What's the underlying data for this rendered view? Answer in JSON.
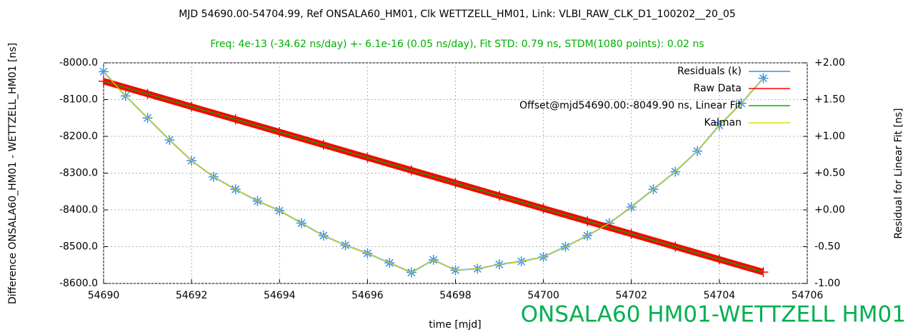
{
  "chart_data": {
    "type": "line",
    "title": "MJD 54690.00-54704.99, Ref ONSALA60_HM01, Clk WETTZELL_HM01, Link: VLBI_RAW_CLK_D1_100202__20_05",
    "subtitle": "Freq: 4e-13 (-34.62 ns/day) +- 6.1e-16 (0.05 ns/day), Fit STD: 0.79 ns, STDM(1080 points): 0.02 ns",
    "xlabel": "time [mjd]",
    "ylabel": "Difference ONSALA60_HM01  -  WETTZELL_HM01 [ns]",
    "y2label": "Residual for Linear Fit [ns]",
    "annotation": "ONSALA60 HM01-WETTZELL HM01",
    "xlim": [
      54690,
      54706
    ],
    "xticks": [
      54690,
      54692,
      54694,
      54696,
      54698,
      54700,
      54702,
      54704,
      54706
    ],
    "ylim": [
      -8600,
      -8000
    ],
    "yticks": [
      {
        "value": -8000,
        "label": "-8000.0"
      },
      {
        "value": -8100,
        "label": "-8100.0"
      },
      {
        "value": -8200,
        "label": "-8200.0"
      },
      {
        "value": -8300,
        "label": "-8300.0"
      },
      {
        "value": -8400,
        "label": "-8400.0"
      },
      {
        "value": -8500,
        "label": "-8500.0"
      },
      {
        "value": -8600,
        "label": "-8600.0"
      }
    ],
    "y2lim": [
      -1,
      2
    ],
    "y2ticks": [
      {
        "value": 2,
        "label": "+2.00"
      },
      {
        "value": 1.5,
        "label": "+1.50"
      },
      {
        "value": 1,
        "label": "+1.00"
      },
      {
        "value": 0.5,
        "label": "+0.50"
      },
      {
        "value": 0,
        "label": "+0.00"
      },
      {
        "value": -0.5,
        "label": "-0.50"
      },
      {
        "value": -1,
        "label": "-1.00"
      }
    ],
    "grid": true,
    "legend": "top right",
    "series": [
      {
        "name": "Residuals (k)",
        "color": "#3a8ee6",
        "axis": "y2",
        "marker": "star",
        "x": [
          54690,
          54690.5,
          54691,
          54691.5,
          54692,
          54692.5,
          54693,
          54693.5,
          54694,
          54694.5,
          54695,
          54695.5,
          54696,
          54696.5,
          54697,
          54697.5,
          54698,
          54698.5,
          54699,
          54699.5,
          54700,
          54700.5,
          54701,
          54701.5,
          54702,
          54702.5,
          54703,
          54703.5,
          54704,
          54704.5,
          54705
        ],
        "values": [
          1.88,
          1.55,
          1.25,
          0.95,
          0.67,
          0.45,
          0.28,
          0.12,
          -0.01,
          -0.18,
          -0.35,
          -0.48,
          -0.59,
          -0.72,
          -0.85,
          -0.68,
          -0.82,
          -0.8,
          -0.74,
          -0.7,
          -0.64,
          -0.5,
          -0.35,
          -0.18,
          0.04,
          0.28,
          0.52,
          0.8,
          1.15,
          1.45,
          1.79
        ]
      },
      {
        "name": "Raw Data",
        "color": "#ff0000",
        "marker": "plus",
        "x": [
          54690,
          54691,
          54692,
          54693,
          54694,
          54695,
          54696,
          54697,
          54698,
          54699,
          54700,
          54701,
          54702,
          54703,
          54704,
          54705
        ],
        "values": [
          -8049.9,
          -8084.52,
          -8119.14,
          -8153.76,
          -8188.38,
          -8223.0,
          -8257.62,
          -8292.24,
          -8326.86,
          -8361.48,
          -8396.1,
          -8430.72,
          -8465.34,
          -8499.96,
          -8534.58,
          -8569.2
        ]
      },
      {
        "name": "Offset@mjd54690.00:-8049.90 ns, Linear Fit",
        "color": "#00b000",
        "x": [
          54690,
          54705
        ],
        "values": [
          -8049.9,
          -8569.2
        ]
      },
      {
        "name": "Kalman",
        "color": "#e0e000",
        "axis": "y2",
        "x": [
          54690,
          54690.5,
          54691,
          54691.5,
          54692,
          54692.5,
          54693,
          54693.5,
          54694,
          54694.5,
          54695,
          54695.5,
          54696,
          54696.5,
          54697,
          54697.5,
          54698,
          54698.5,
          54699,
          54699.5,
          54700,
          54700.5,
          54701,
          54701.5,
          54702,
          54702.5,
          54703,
          54703.5,
          54704,
          54704.5,
          54705
        ],
        "values": [
          1.88,
          1.55,
          1.25,
          0.95,
          0.67,
          0.45,
          0.28,
          0.12,
          -0.01,
          -0.18,
          -0.35,
          -0.48,
          -0.59,
          -0.72,
          -0.85,
          -0.68,
          -0.82,
          -0.8,
          -0.74,
          -0.7,
          -0.64,
          -0.5,
          -0.35,
          -0.18,
          0.04,
          0.28,
          0.52,
          0.8,
          1.15,
          1.45,
          1.79
        ]
      }
    ]
  }
}
